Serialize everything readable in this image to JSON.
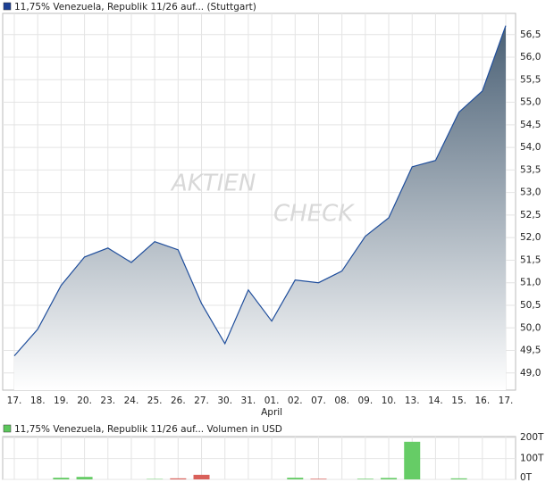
{
  "chart_data": [
    {
      "type": "area",
      "legend": "11,75% Venezuela, Republik 11/26 auf... (Stuttgart)",
      "legend_color": "#1c3f94",
      "watermark": [
        "AKTIEN",
        "CHECK"
      ],
      "categories": [
        "17.",
        "18.",
        "19.",
        "20.",
        "23.",
        "24.",
        "25.",
        "26.",
        "27.",
        "30.",
        "31.",
        "01.",
        "02.",
        "07.",
        "08.",
        "09.",
        "10.",
        "13.",
        "14.",
        "15.",
        "16.",
        "17."
      ],
      "category_months": [
        null,
        null,
        null,
        null,
        null,
        null,
        null,
        null,
        null,
        null,
        null,
        "April",
        null,
        null,
        null,
        null,
        null,
        null,
        null,
        null,
        null,
        null
      ],
      "values": [
        49.38,
        49.97,
        50.94,
        51.57,
        51.77,
        51.45,
        51.91,
        51.73,
        50.54,
        49.65,
        50.84,
        50.15,
        51.06,
        51.0,
        51.26,
        52.03,
        52.44,
        53.57,
        53.71,
        54.78,
        55.25,
        56.7
      ],
      "color": "#1f4e9c",
      "fill_top": "#4a6075",
      "fill_bottom": "#ffffff",
      "ylim": [
        48.62,
        56.97
      ],
      "yticks": [
        {
          "value": 49.0,
          "label": "49,0"
        },
        {
          "value": 49.5,
          "label": "49,5"
        },
        {
          "value": 50.0,
          "label": "50,0"
        },
        {
          "value": 50.5,
          "label": "50,5"
        },
        {
          "value": 51.0,
          "label": "51,0"
        },
        {
          "value": 51.5,
          "label": "51,5"
        },
        {
          "value": 52.0,
          "label": "52,0"
        },
        {
          "value": 52.5,
          "label": "52,5"
        },
        {
          "value": 53.0,
          "label": "53,0"
        },
        {
          "value": 53.5,
          "label": "53,5"
        },
        {
          "value": 54.0,
          "label": "54,0"
        },
        {
          "value": 54.5,
          "label": "54,5"
        },
        {
          "value": 55.0,
          "label": "55,0"
        },
        {
          "value": 55.5,
          "label": "55,5"
        },
        {
          "value": 56.0,
          "label": "56,0"
        },
        {
          "value": 56.5,
          "label": "56,5"
        }
      ],
      "grid": true
    },
    {
      "type": "bar",
      "legend": "11,75% Venezuela, Republik 11/26 auf... Volumen in USD",
      "legend_color": "#5cc75c",
      "values": [
        null,
        null,
        8,
        12,
        null,
        null,
        2,
        5,
        22,
        null,
        null,
        null,
        8,
        3,
        null,
        3,
        7,
        180,
        null,
        5,
        null,
        null
      ],
      "colors": [
        null,
        null,
        "#66cc66",
        "#66cc66",
        null,
        null,
        "#66cc66",
        "#d9605a",
        "#d9605a",
        null,
        null,
        null,
        "#66cc66",
        "#d9605a",
        null,
        "#66cc66",
        "#66cc66",
        "#66cc66",
        null,
        "#66cc66",
        null,
        null
      ],
      "ylim": [
        0,
        205
      ],
      "yticks": [
        {
          "value": 0,
          "label": "0T"
        },
        {
          "value": 100,
          "label": "100T"
        },
        {
          "value": 200,
          "label": "200T"
        }
      ],
      "grid": true
    }
  ]
}
